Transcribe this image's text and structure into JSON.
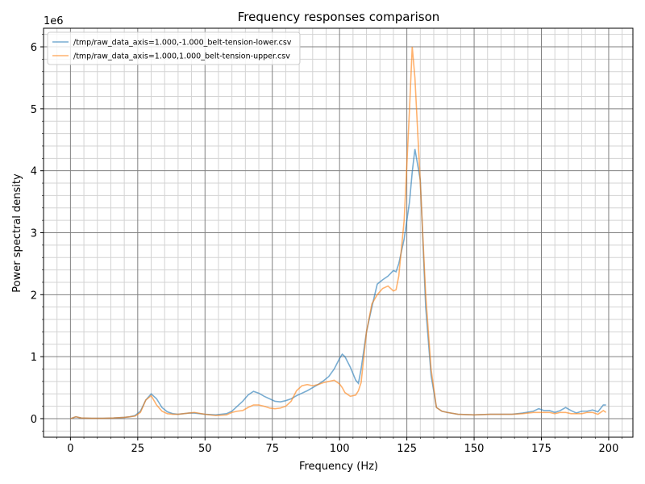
{
  "chart_data": {
    "type": "line",
    "title": "Frequency responses comparison",
    "x_label": "Frequency (Hz)",
    "y_label": "Power spectral density",
    "y_offset_label": "1e6",
    "x": [
      0,
      2,
      4,
      8,
      12,
      16,
      20,
      22,
      24,
      26,
      28,
      30,
      32,
      34,
      36,
      38,
      40,
      44,
      46,
      50,
      54,
      58,
      60,
      62,
      64,
      66,
      68,
      70,
      72,
      74,
      76,
      78,
      80,
      82,
      84,
      86,
      88,
      90,
      92,
      94,
      96,
      98,
      100,
      101,
      102,
      104,
      106,
      107,
      108,
      110,
      112,
      114,
      116,
      118,
      120,
      121,
      122,
      124,
      126,
      127,
      128,
      130,
      132,
      134,
      136,
      138,
      140,
      144,
      150,
      156,
      160,
      164,
      168,
      172,
      174,
      176,
      178,
      180,
      182,
      184,
      186,
      188,
      190,
      192,
      194,
      196,
      198,
      199
    ],
    "series": [
      {
        "name": "/tmp/raw_data_axis=1.000,-1.000_belt-tension-lower.csv",
        "color": "#1f77b4",
        "values": [
          0,
          0.03,
          0.01,
          0.005,
          0.005,
          0.01,
          0.02,
          0.03,
          0.05,
          0.12,
          0.3,
          0.4,
          0.32,
          0.18,
          0.11,
          0.08,
          0.07,
          0.09,
          0.09,
          0.07,
          0.06,
          0.08,
          0.12,
          0.2,
          0.28,
          0.38,
          0.44,
          0.41,
          0.36,
          0.32,
          0.28,
          0.27,
          0.29,
          0.32,
          0.37,
          0.41,
          0.45,
          0.5,
          0.55,
          0.61,
          0.68,
          0.8,
          0.97,
          1.04,
          1.0,
          0.83,
          0.62,
          0.57,
          0.8,
          1.4,
          1.8,
          2.17,
          2.24,
          2.3,
          2.39,
          2.37,
          2.5,
          2.9,
          3.5,
          3.98,
          4.35,
          3.85,
          1.8,
          0.7,
          0.18,
          0.12,
          0.1,
          0.07,
          0.06,
          0.07,
          0.07,
          0.07,
          0.09,
          0.12,
          0.16,
          0.13,
          0.13,
          0.1,
          0.13,
          0.18,
          0.13,
          0.09,
          0.12,
          0.12,
          0.14,
          0.11,
          0.22,
          0.22
        ]
      },
      {
        "name": "/tmp/raw_data_axis=1.000,1.000_belt-tension-upper.csv",
        "color": "#ff7f0e",
        "values": [
          0,
          0.03,
          0.01,
          0.005,
          0.005,
          0.01,
          0.02,
          0.03,
          0.04,
          0.1,
          0.3,
          0.37,
          0.22,
          0.12,
          0.08,
          0.07,
          0.07,
          0.09,
          0.1,
          0.07,
          0.05,
          0.06,
          0.1,
          0.12,
          0.13,
          0.18,
          0.22,
          0.22,
          0.2,
          0.17,
          0.16,
          0.17,
          0.2,
          0.28,
          0.45,
          0.53,
          0.55,
          0.53,
          0.55,
          0.58,
          0.6,
          0.62,
          0.56,
          0.5,
          0.42,
          0.36,
          0.38,
          0.45,
          0.58,
          1.4,
          1.85,
          2.0,
          2.1,
          2.14,
          2.06,
          2.08,
          2.3,
          3.2,
          5.0,
          6.0,
          5.5,
          3.8,
          2.0,
          0.8,
          0.18,
          0.12,
          0.1,
          0.07,
          0.06,
          0.07,
          0.07,
          0.07,
          0.08,
          0.1,
          0.1,
          0.1,
          0.1,
          0.08,
          0.1,
          0.1,
          0.08,
          0.08,
          0.08,
          0.1,
          0.1,
          0.07,
          0.13,
          0.1
        ]
      }
    ],
    "xlim": [
      -10,
      209
    ],
    "ylim": [
      -0.3,
      6.3
    ],
    "xticks": [
      0,
      25,
      50,
      75,
      100,
      125,
      150,
      175,
      200
    ],
    "yticks": [
      0,
      1,
      2,
      3,
      4,
      5,
      6
    ],
    "xminorticks": [
      -5,
      5,
      10,
      15,
      20,
      30,
      35,
      40,
      45,
      55,
      60,
      65,
      70,
      80,
      85,
      90,
      95,
      105,
      110,
      115,
      120,
      130,
      135,
      140,
      145,
      155,
      160,
      165,
      170,
      180,
      185,
      190,
      195,
      205
    ],
    "yminorticks": [
      -0.2,
      0.2,
      0.4,
      0.6,
      0.8,
      1.2,
      1.4,
      1.6,
      1.8,
      2.2,
      2.4,
      2.6,
      2.8,
      3.2,
      3.4,
      3.6,
      3.8,
      4.2,
      4.4,
      4.6,
      4.8,
      5.2,
      5.4,
      5.6,
      5.8,
      6.2
    ],
    "grid": true,
    "legend": "upper left"
  }
}
